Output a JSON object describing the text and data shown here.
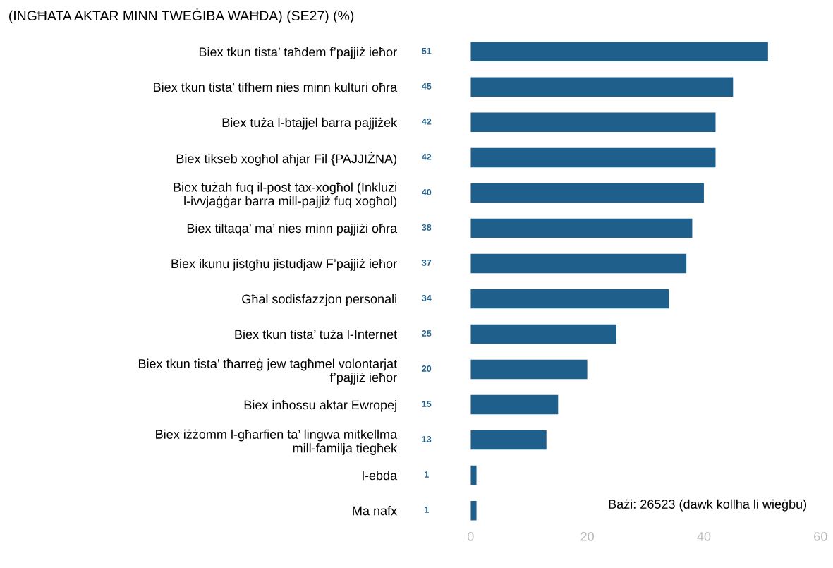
{
  "chart_data": {
    "type": "bar",
    "orientation": "horizontal",
    "title": "(INGĦATA AKTAR MINN TWEĠIBA WAĦDA) (SE27) (%)",
    "categories": [
      "Biex tkun tista’ taħdem f’pajjiż ieħor",
      "Biex tkun tista’ tifhem nies minn kulturi oħra",
      "Biex tuża l-btajjel barra pajjiżek",
      "Biex tikseb xogħol aħjar Fil {PAJJIŻNA)",
      "Biex tużah fuq il-post tax-xogħol (Inklużi l-ivvjaġġar barra mill-pajjiż fuq xogħol)",
      "Biex tiltaqa’ ma’ nies minn pajjiżi oħra",
      "Biex ikunu jistgħu jistudjaw F’pajjiż ieħor",
      "Għal sodisfazzjon personali",
      "Biex tkun tista’ tuża l-Internet",
      "Biex tkun tista’ tħarreġ jew tagħmel volontarjat f’pajjiż ieħor",
      "Biex inħossu aktar Ewropej",
      "Biex iżżomm l-għarfien ta’ lingwa mitkellma mill-familja tiegħek",
      "l-ebda",
      "Ma nafx"
    ],
    "values": [
      51,
      45,
      42,
      42,
      40,
      38,
      37,
      34,
      25,
      20,
      15,
      13,
      1,
      1
    ],
    "color": "#1f5f8b",
    "data_labels": true,
    "xlim": [
      0,
      60
    ],
    "xticks": [
      0,
      20,
      40,
      60
    ],
    "grid": false,
    "annotations": [
      "Bażi: 26523 (dawk kollha li wieġbu)"
    ]
  }
}
